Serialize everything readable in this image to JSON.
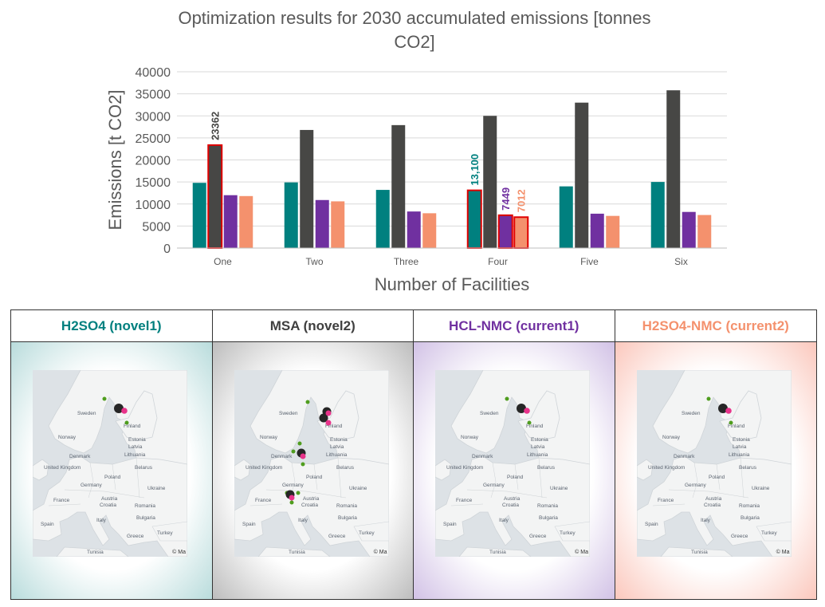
{
  "chart_data": {
    "type": "bar",
    "title": "Optimization results for 2030 accumulated emissions [tonnes CO2]",
    "title_lines": [
      "Optimization results for 2030 accumulated emissions [tonnes",
      "CO2]"
    ],
    "xlabel": "Number of Facilities",
    "ylabel": "Emissions [t CO2]",
    "ylim": [
      0,
      40000
    ],
    "yticks": [
      0,
      5000,
      10000,
      15000,
      20000,
      25000,
      30000,
      35000,
      40000
    ],
    "grid": true,
    "categories": [
      "One",
      "Two",
      "Three",
      "Four",
      "Five",
      "Six"
    ],
    "series": [
      {
        "name": "H2SO4 (novel1)",
        "color": "#00807f",
        "values": [
          14800,
          14900,
          13200,
          13100,
          14000,
          15000
        ]
      },
      {
        "name": "MSA (novel2)",
        "color": "#474745",
        "values": [
          23362,
          26800,
          27900,
          30000,
          33000,
          35800
        ]
      },
      {
        "name": "HCL-NMC (current1)",
        "color": "#7030a0",
        "values": [
          12000,
          10900,
          8300,
          7449,
          7800,
          8200
        ]
      },
      {
        "name": "H2SO4-NMC (current2)",
        "color": "#f4916d",
        "values": [
          11800,
          10600,
          7900,
          7012,
          7300,
          7500
        ]
      }
    ],
    "annotations": [
      {
        "category": "One",
        "series": 1,
        "label": "23362",
        "highlight": true
      },
      {
        "category": "Four",
        "series": 0,
        "label": "13,100",
        "highlight": true
      },
      {
        "category": "Four",
        "series": 2,
        "label": "7449",
        "highlight": true
      },
      {
        "category": "Four",
        "series": 3,
        "label": "7012",
        "highlight": true
      }
    ],
    "highlight_color": "#e00000"
  },
  "panels": [
    {
      "title": "H2SO4 (novel1)",
      "title_color": "#00807f",
      "bg_color": "#b9dcdc",
      "map": "sweden-1"
    },
    {
      "title": "MSA (novel2)",
      "title_color": "#3f3f3f",
      "bg_color": "#bdbdbd",
      "map": "europe-multi"
    },
    {
      "title": "HCL-NMC (current1)",
      "title_color": "#7030a0",
      "bg_color": "#d2c2e6",
      "map": "sweden-1"
    },
    {
      "title": "H2SO4-NMC (current2)",
      "title_color": "#f4916d",
      "bg_color": "#fbc8bd",
      "map": "sweden-1"
    }
  ],
  "map_labels": {
    "sweden": "Sweden",
    "finland": "Finland",
    "norway": "Norway",
    "estonia": "Estonia",
    "latvia": "Latvia",
    "lithuania": "Lithuania",
    "denmark": "Denmark",
    "uk": "United Kingdom",
    "belarus": "Belarus",
    "poland": "Poland",
    "germany": "Germany",
    "ukraine": "Ukraine",
    "france": "France",
    "austria": "Austria",
    "croatia": "Croatia",
    "romania": "Romania",
    "italy": "Italy",
    "bulgaria": "Bulgaria",
    "spain": "Spain",
    "greece": "Greece",
    "turkey": "Turkey",
    "tunisia": "Tunisia"
  },
  "map_credit": "© Ma"
}
